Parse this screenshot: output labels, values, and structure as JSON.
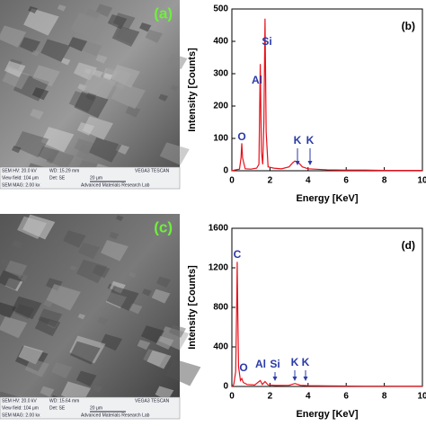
{
  "chart_data": [
    {
      "type": "line",
      "panel_label": "(b)",
      "x_label": "Energy [KeV]",
      "y_label": "Intensity [Counts]",
      "color": "#e8101a",
      "x": [
        0,
        0.2,
        0.4,
        0.48,
        0.52,
        0.56,
        0.7,
        1.0,
        1.3,
        1.42,
        1.49,
        1.55,
        1.62,
        1.68,
        1.74,
        1.8,
        1.9,
        2.2,
        2.6,
        3.0,
        3.2,
        3.31,
        3.5,
        3.7,
        4.0,
        5,
        6,
        7,
        8,
        9,
        10
      ],
      "values": [
        0,
        3,
        5,
        40,
        85,
        40,
        6,
        5,
        8,
        20,
        330,
        60,
        20,
        150,
        470,
        120,
        12,
        8,
        6,
        12,
        25,
        30,
        25,
        12,
        6,
        3,
        2,
        2,
        1,
        1,
        1
      ],
      "xlim": [
        0,
        10
      ],
      "xticks": [
        0,
        2,
        4,
        6,
        8,
        10
      ],
      "ylim": [
        0,
        500
      ],
      "yticks": [
        0,
        100,
        200,
        300,
        400,
        500
      ],
      "annotations": [
        "O",
        "Al",
        "Si",
        "K",
        "K"
      ]
    },
    {
      "type": "line",
      "panel_label": "(d)",
      "x_label": "Energy [KeV]",
      "y_label": "Intensity [Counts]",
      "color": "#e8101a",
      "x": [
        0,
        0.1,
        0.2,
        0.26,
        0.28,
        0.3,
        0.35,
        0.45,
        0.52,
        0.6,
        0.8,
        1.2,
        1.49,
        1.6,
        1.74,
        1.9,
        2.3,
        3.0,
        3.31,
        3.6,
        4.0,
        5,
        6,
        7,
        8,
        9,
        10
      ],
      "values": [
        0,
        20,
        150,
        900,
        1260,
        900,
        200,
        60,
        80,
        40,
        20,
        15,
        60,
        20,
        50,
        15,
        10,
        12,
        30,
        12,
        8,
        6,
        4,
        3,
        3,
        2,
        2
      ],
      "xlim": [
        0,
        10
      ],
      "xticks": [
        0,
        2,
        4,
        6,
        8,
        10
      ],
      "ylim": [
        0,
        1600
      ],
      "yticks": [
        0,
        400,
        800,
        1200,
        1600
      ],
      "annotations": [
        "C",
        "O",
        "Al",
        "Si",
        "K",
        "K"
      ]
    }
  ],
  "images": [
    {
      "label": "(a)",
      "info": [
        "SEM HV: 20.0 kV",
        "WD: 15.29 mm",
        "VEGA3 TESCAN",
        "View field: 104 μm",
        "Det: SE",
        "20 μm",
        "SEM MAG: 2.00 kx",
        "Advanced Materials Research Lab"
      ]
    },
    {
      "label": "(c)",
      "info": [
        "SEM HV: 20.0 kV",
        "WD: 15.64 mm",
        "VEGA3 TESCAN",
        "View field: 104 μm",
        "Det: SE",
        "20 μm",
        "SEM MAG: 2.00 kx",
        "Advanced Materials Research Lab"
      ]
    }
  ]
}
